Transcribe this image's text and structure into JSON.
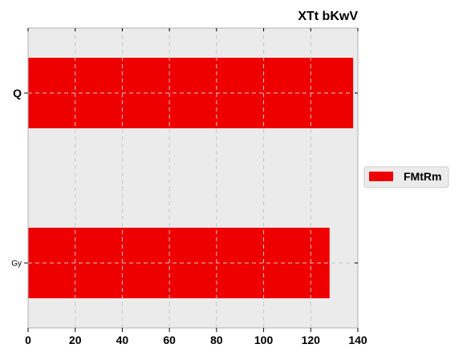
{
  "chart_data": {
    "type": "bar",
    "orientation": "horizontal",
    "title": "XTt  bKwV",
    "xlabel": "",
    "ylabel": "",
    "categories": [
      "Q",
      "Gy"
    ],
    "series": [
      {
        "name": "FMtRm",
        "values": [
          138,
          128
        ],
        "color": "#ee0000"
      }
    ],
    "xlim": [
      0,
      140
    ],
    "xticks": [
      0,
      20,
      40,
      60,
      80,
      100,
      120,
      140
    ],
    "grid": true,
    "legend_position": "right"
  },
  "colors": {
    "plot_background": "#ebebeb",
    "bar": "#ee0000",
    "grid": "#c8c8c8"
  }
}
